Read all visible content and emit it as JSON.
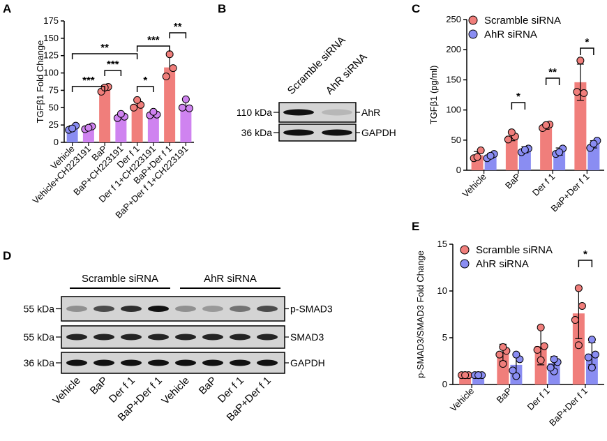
{
  "panels": {
    "a": "A",
    "b": "B",
    "c": "C",
    "d": "D",
    "e": "E"
  },
  "colors": {
    "scramble": "#f07e7b",
    "ahr": "#8a8df2",
    "purple": "#cf83f0",
    "band": "#111111"
  },
  "chart_data": [
    {
      "id": "A",
      "type": "bar",
      "ylabel": "TGFβ1 Fold Change",
      "xlabel": "",
      "ylim": [
        0,
        175
      ],
      "yticks": [
        "0",
        "25",
        "50",
        "75",
        "100",
        "125",
        "150",
        "175"
      ],
      "categories": [
        "Vehicle",
        "Vehicle+CH223191",
        "BaP",
        "BaP+CH223191",
        "Der f 1",
        "Der f 1+CH223191",
        "BaP+Der f 1",
        "BaP+Der f 1+CH223191"
      ],
      "bar_colors": [
        "ahr",
        "purple",
        "scramble",
        "purple",
        "scramble",
        "purple",
        "scramble",
        "purple"
      ],
      "values": [
        21,
        21,
        77,
        38,
        55,
        40,
        108,
        54
      ],
      "errors": [
        3,
        2,
        5,
        4,
        7,
        4,
        17,
        8
      ],
      "points": [
        [
          18,
          24,
          20
        ],
        [
          19,
          23,
          21
        ],
        [
          73,
          80,
          79
        ],
        [
          35,
          37,
          41
        ],
        [
          50,
          54,
          61
        ],
        [
          39,
          40,
          44
        ],
        [
          95,
          107,
          127
        ],
        [
          50,
          49,
          62
        ]
      ],
      "brackets": [
        {
          "from": 0,
          "to": 2,
          "label": "***"
        },
        {
          "from": 2,
          "to": 3,
          "label": "***"
        },
        {
          "from": 0,
          "to": 4,
          "label": "**"
        },
        {
          "from": 4,
          "to": 5,
          "label": "*"
        },
        {
          "from": 4,
          "to": 6,
          "label": "***"
        },
        {
          "from": 6,
          "to": 7,
          "label": "**"
        }
      ]
    },
    {
      "id": "C",
      "type": "bar",
      "ylabel": "TGFβ1 (pg/ml)",
      "xlabel": "",
      "ylim": [
        0,
        250
      ],
      "yticks": [
        "0",
        "50",
        "100",
        "150",
        "200",
        "250"
      ],
      "categories": [
        "Vehicle",
        "BaP",
        "Der f 1",
        "BaP+Der f 1"
      ],
      "legend": [
        "Scramble siRNA",
        "AhR siRNA"
      ],
      "series": [
        {
          "name": "Scramble siRNA",
          "values": [
            25,
            57,
            73,
            146
          ],
          "errors": [
            6,
            8,
            5,
            30
          ],
          "points": [
            [
              20,
              33,
              22
            ],
            [
              51,
              56,
              63
            ],
            [
              70,
              76,
              75
            ],
            [
              130,
              128,
              182
            ]
          ]
        },
        {
          "name": "AhR siRNA",
          "values": [
            24,
            34,
            31,
            43
          ],
          "errors": [
            4,
            5,
            6,
            6
          ],
          "points": [
            [
              20,
              27,
              24
            ],
            [
              30,
              36,
              34
            ],
            [
              27,
              36,
              30
            ],
            [
              37,
              49,
              44
            ]
          ]
        }
      ],
      "brackets": [
        {
          "group": 1,
          "label": "*"
        },
        {
          "group": 2,
          "label": "**"
        },
        {
          "group": 3,
          "label": "*"
        }
      ]
    },
    {
      "id": "E",
      "type": "bar",
      "ylabel": "p-SMAD3/SMAD3 Fold Change",
      "xlabel": "",
      "ylim": [
        0,
        15
      ],
      "yticks": [
        "0",
        "5",
        "10",
        "15"
      ],
      "categories": [
        "Vehicle",
        "BaP",
        "Der f 1",
        "BaP+Der f 1"
      ],
      "legend": [
        "Scramble siRNA",
        "AhR siRNA"
      ],
      "series": [
        {
          "name": "Scramble siRNA",
          "values": [
            1.0,
            3.4,
            4.1,
            7.6
          ],
          "errors": [
            0.05,
            0.9,
            2.0,
            2.7
          ],
          "points": [
            [
              1.0,
              1.0,
              1.0,
              1.0
            ],
            [
              2.2,
              3.2,
              3.6,
              4.0
            ],
            [
              2.6,
              3.7,
              4.1,
              6.1
            ],
            [
              4.2,
              6.9,
              8.4,
              10.3
            ]
          ]
        },
        {
          "name": "AhR siRNA",
          "values": [
            1.0,
            2.1,
            2.3,
            3.3
          ],
          "errors": [
            0.05,
            1.1,
            0.7,
            1.2
          ],
          "points": [
            [
              1.0,
              1.0,
              1.0,
              1.0
            ],
            [
              0.9,
              1.5,
              2.7,
              3.2
            ],
            [
              1.4,
              1.8,
              2.4,
              2.7
            ],
            [
              1.8,
              2.9,
              3.2,
              4.8
            ]
          ]
        }
      ],
      "brackets": [
        {
          "group": 3,
          "label": "*"
        }
      ]
    }
  ],
  "blotB": {
    "lanes": [
      "Scramble siRNA",
      "AhR siRNA"
    ],
    "rows": [
      {
        "kda": "110 kDa",
        "protein": "AhR",
        "intensity": [
          1.0,
          0.15
        ]
      },
      {
        "kda": "36 kDa",
        "protein": "GAPDH",
        "intensity": [
          1.0,
          1.0
        ]
      }
    ]
  },
  "blotD": {
    "groups": [
      "Scramble siRNA",
      "AhR siRNA"
    ],
    "lanes": [
      "Vehicle",
      "BaP",
      "Der f 1",
      "BaP+Der f 1",
      "Vehicle",
      "BaP",
      "Der f 1",
      "BaP+Der f 1"
    ],
    "rows": [
      {
        "kda": "55 kDa",
        "protein": "p-SMAD3",
        "intensity": [
          0.35,
          0.7,
          0.85,
          1.0,
          0.35,
          0.3,
          0.5,
          0.7
        ]
      },
      {
        "kda": "55 kDa",
        "protein": "SMAD3",
        "intensity": [
          0.9,
          0.9,
          0.9,
          0.9,
          0.9,
          0.9,
          0.9,
          0.9
        ]
      },
      {
        "kda": "36 kDa",
        "protein": "GAPDH",
        "intensity": [
          1.0,
          1.0,
          1.0,
          1.0,
          1.0,
          1.0,
          1.0,
          1.0
        ]
      }
    ]
  }
}
